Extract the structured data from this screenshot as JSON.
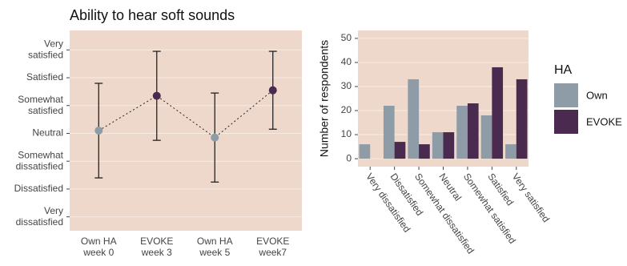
{
  "chart_data": [
    {
      "type": "point",
      "title": "Ability to hear soft sounds",
      "categories": [
        [
          "Own HA",
          "week 0"
        ],
        [
          "EVOKE",
          "week 3"
        ],
        [
          "Own HA",
          "week 5"
        ],
        [
          "EVOKE",
          "week7"
        ]
      ],
      "values": [
        4.1,
        5.35,
        3.85,
        5.55
      ],
      "errors": [
        1.7,
        1.6,
        1.6,
        1.4
      ],
      "colors": [
        "#8d9ca7",
        "#4b2a4f",
        "#8d9ca7",
        "#4b2a4f"
      ],
      "ylim": [
        0.5,
        7.7
      ],
      "yticks": [
        {
          "value": 1,
          "label": [
            "Very",
            "dissatisfied"
          ]
        },
        {
          "value": 2,
          "label": [
            "Dissatisfied"
          ]
        },
        {
          "value": 3,
          "label": [
            "Somewhat",
            "dissatisfied"
          ]
        },
        {
          "value": 4,
          "label": [
            "Neutral"
          ]
        },
        {
          "value": 5,
          "label": [
            "Somewhat",
            "satisfied"
          ]
        },
        {
          "value": 6,
          "label": [
            "Satisfied"
          ]
        },
        {
          "value": 7,
          "label": [
            "Very",
            "satisfied"
          ]
        }
      ],
      "grid": true
    },
    {
      "type": "bar",
      "ylabel": "Number of respondents",
      "categories": [
        "Very dissatisfied",
        "Dissatisfied",
        "Somewhat dissatisfied",
        "Neutral",
        "Somewhat satisfied",
        "Satisfied",
        "Very satisfied"
      ],
      "series": [
        {
          "name": "Own",
          "color": "#8d9ca7",
          "values": [
            6,
            22,
            33,
            11,
            22,
            18,
            6
          ]
        },
        {
          "name": "EVOKE",
          "color": "#4b2a4f",
          "values": [
            0,
            7,
            6,
            11,
            23,
            38,
            33
          ]
        }
      ],
      "legend_title": "HA",
      "legend": "right",
      "ylim": [
        -3.3,
        53.3
      ],
      "yticks": [
        0,
        10,
        20,
        30,
        40,
        50
      ],
      "grid": true
    }
  ]
}
